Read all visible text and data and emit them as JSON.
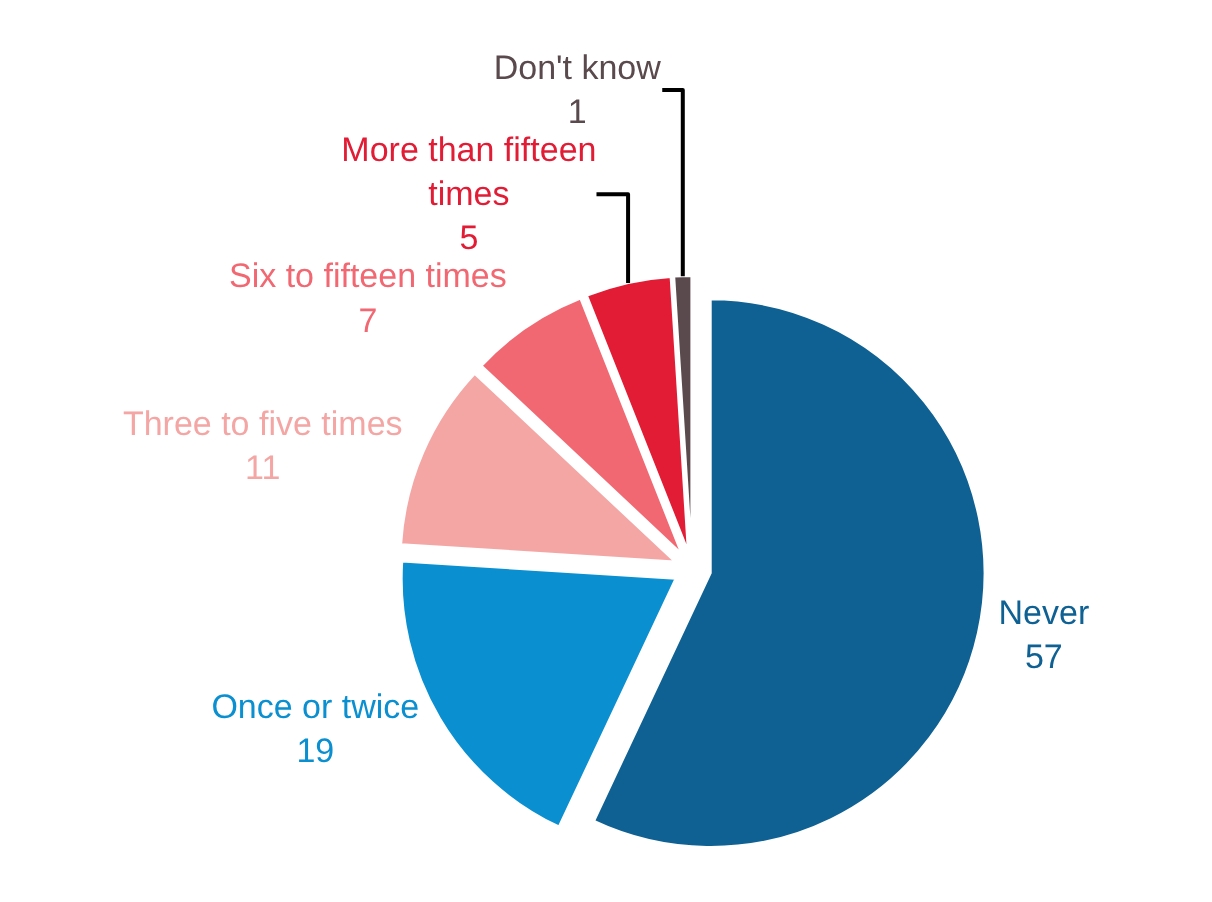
{
  "chart_data": {
    "type": "pie",
    "categories": [
      "Never",
      "Once or twice",
      "Three to five times",
      "Six to fifteen times",
      "More than fifteen times",
      "Don't know"
    ],
    "values": [
      57,
      19,
      11,
      7,
      5,
      1
    ],
    "colors": [
      "#0e6192",
      "#0a8fd0",
      "#f4a6a4",
      "#f26872",
      "#e21c35",
      "#5a4a4e"
    ],
    "data_labels": true,
    "legend": false
  }
}
